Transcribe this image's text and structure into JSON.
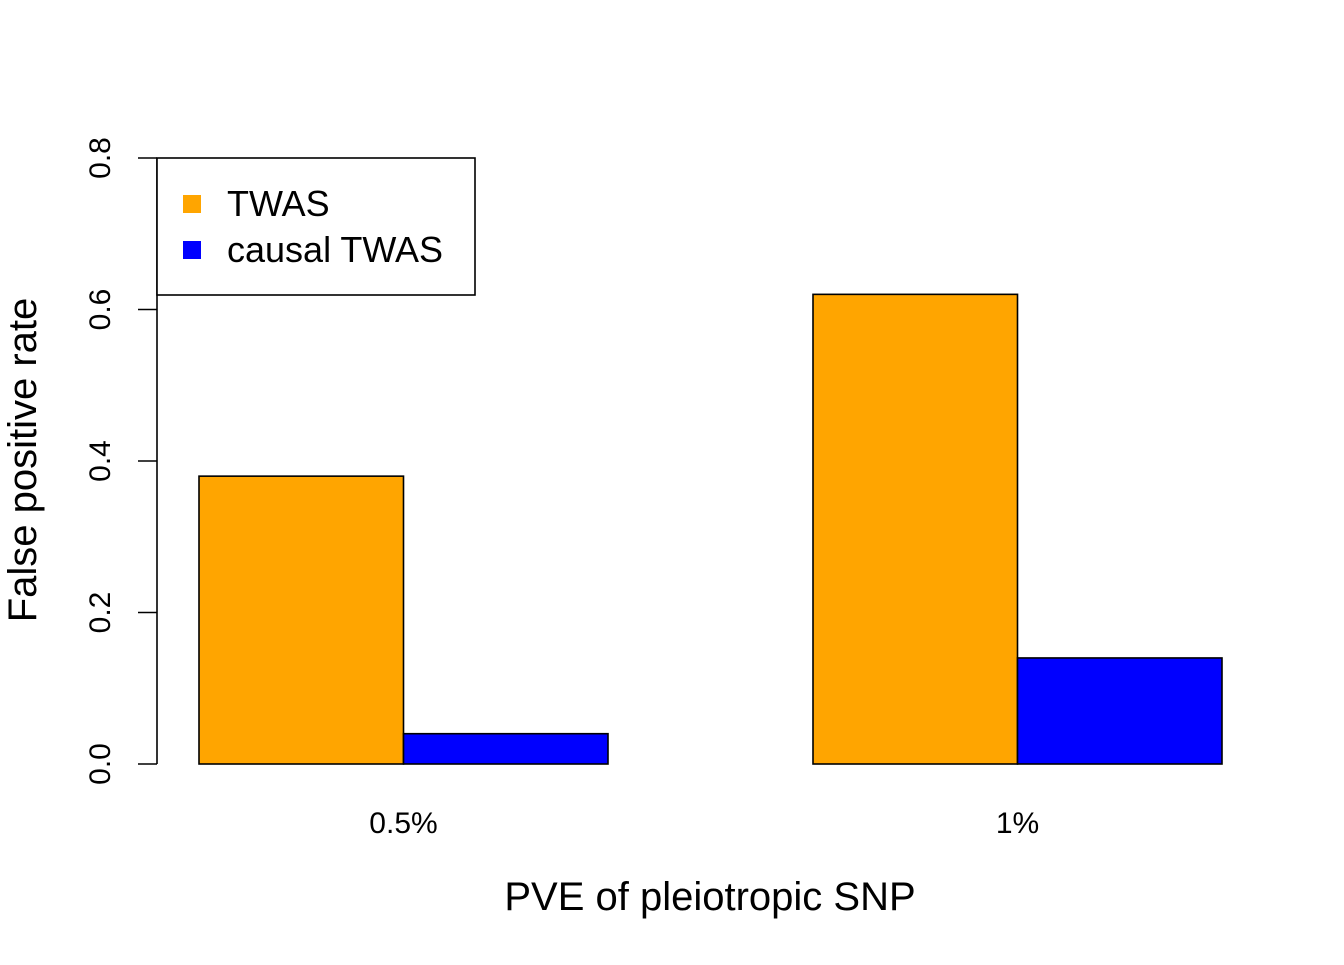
{
  "chart_data": {
    "type": "bar",
    "title": "",
    "xlabel": "PVE of pleiotropic SNP",
    "ylabel": "False positive rate",
    "categories": [
      "0.5%",
      "1%"
    ],
    "series": [
      {
        "name": "TWAS",
        "color": "#FFA500",
        "values": [
          0.38,
          0.62
        ]
      },
      {
        "name": "causal TWAS",
        "color": "#0000FF",
        "values": [
          0.04,
          0.14
        ]
      }
    ],
    "ylim": [
      0,
      0.8
    ],
    "yticks": [
      "0.0",
      "0.2",
      "0.4",
      "0.6",
      "0.8"
    ],
    "grid": false,
    "legend_position": "top-left"
  }
}
